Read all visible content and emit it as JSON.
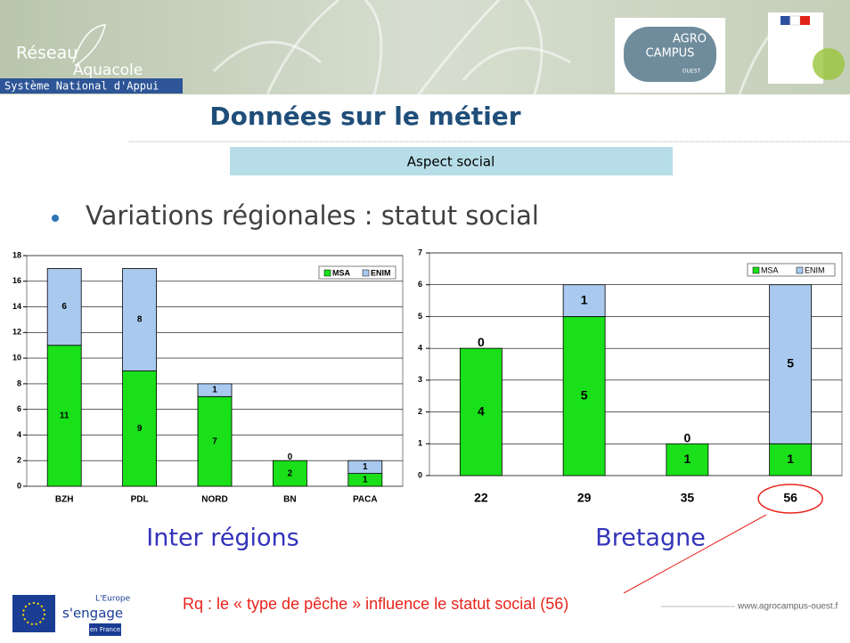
{
  "header": {
    "logo_line1": "Réseau",
    "logo_line2": "Aquacole",
    "logo_tagline": "Système National d'Appui",
    "partner_logo": [
      "AGRO",
      "CAMPUS",
      "OUEST"
    ]
  },
  "title": "Données sur le métier",
  "section": "Aspect social",
  "bullet": "Variations régionales : statut social",
  "chart_data": [
    {
      "type": "bar",
      "stacked": true,
      "caption": "Inter régions",
      "categories": [
        "BZH",
        "PDL",
        "NORD",
        "BN",
        "PACA"
      ],
      "series": [
        {
          "name": "MSA",
          "color": "#19e019",
          "values": [
            11,
            9,
            7,
            2,
            1
          ]
        },
        {
          "name": "ENIM",
          "color": "#a9c9ef",
          "values": [
            6,
            8,
            1,
            0,
            1
          ]
        }
      ],
      "ylim": [
        0,
        18
      ],
      "yticks": [
        0,
        2,
        4,
        6,
        8,
        10,
        12,
        14,
        16,
        18
      ],
      "grid": true,
      "legend": "top-right"
    },
    {
      "type": "bar",
      "stacked": true,
      "caption": "Bretagne",
      "categories": [
        "22",
        "29",
        "35",
        "56"
      ],
      "series": [
        {
          "name": "MSA",
          "color": "#19e019",
          "values": [
            4,
            5,
            1,
            1
          ]
        },
        {
          "name": "ENIM",
          "color": "#a9c9ef",
          "values": [
            0,
            1,
            0,
            5
          ]
        }
      ],
      "ylim": [
        0,
        7
      ],
      "yticks": [
        0,
        1,
        2,
        3,
        4,
        5,
        6,
        7
      ],
      "grid": true,
      "legend": "top-right"
    }
  ],
  "note": "Rq : le « type de pêche » influence le statut social (56)",
  "url": "www.agrocampus-ouest.f",
  "footer_logo": [
    "L'Europe",
    "s'engage",
    "en France"
  ]
}
